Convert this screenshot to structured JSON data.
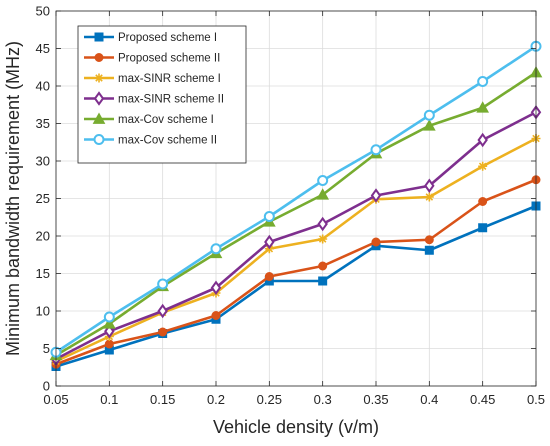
{
  "chart_data": {
    "type": "line",
    "title": "",
    "xlabel": "Vehicle density (v/m)",
    "ylabel": "Minimum bandwidth requirement (MHz)",
    "x": [
      0.05,
      0.1,
      0.15,
      0.2,
      0.25,
      0.3,
      0.35,
      0.4,
      0.45,
      0.5
    ],
    "x_tick_labels": [
      "0.05",
      "0.1",
      "0.15",
      "0.2",
      "0.25",
      "0.3",
      "0.35",
      "0.4",
      "0.45",
      "0.5"
    ],
    "xlim": [
      0.05,
      0.5
    ],
    "ylim": [
      0,
      50
    ],
    "y_ticks": [
      0,
      5,
      10,
      15,
      20,
      25,
      30,
      35,
      40,
      45,
      50
    ],
    "grid": true,
    "legend_position": "top-left",
    "series": [
      {
        "name": "Proposed scheme I",
        "color": "#0072BD",
        "marker": "square",
        "values": [
          2.6,
          4.8,
          7.0,
          8.9,
          14.0,
          14.0,
          18.7,
          18.1,
          21.1,
          24.0
        ]
      },
      {
        "name": "Proposed scheme II",
        "color": "#D95319",
        "marker": "circle",
        "values": [
          2.9,
          5.6,
          7.2,
          9.4,
          14.6,
          16.0,
          19.2,
          19.5,
          24.6,
          27.5
        ]
      },
      {
        "name": "max-SINR scheme I",
        "color": "#EDB120",
        "marker": "asterisk",
        "values": [
          3.3,
          6.6,
          9.8,
          12.4,
          18.3,
          19.6,
          24.9,
          25.2,
          29.3,
          33.0
        ]
      },
      {
        "name": "max-SINR scheme II",
        "color": "#7E2F8E",
        "marker": "diamond",
        "values": [
          3.6,
          7.3,
          10.0,
          13.1,
          19.2,
          21.6,
          25.4,
          26.7,
          32.8,
          36.5
        ]
      },
      {
        "name": "max-Cov scheme I",
        "color": "#77AC30",
        "marker": "triangle",
        "values": [
          4.1,
          8.3,
          13.3,
          17.7,
          21.9,
          25.5,
          31.0,
          34.7,
          37.1,
          41.8
        ]
      },
      {
        "name": "max-Cov scheme II",
        "color": "#4DBEEE",
        "marker": "circle-open",
        "values": [
          4.5,
          9.2,
          13.6,
          18.3,
          22.6,
          27.4,
          31.5,
          36.1,
          40.6,
          45.3
        ]
      }
    ]
  }
}
